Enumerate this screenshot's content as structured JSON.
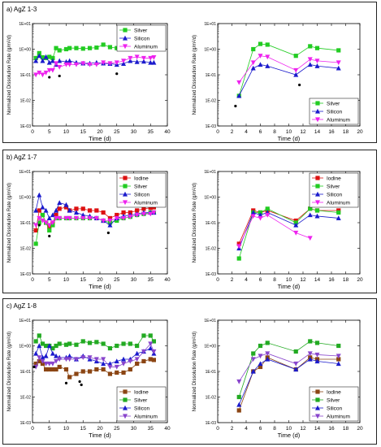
{
  "chart_data": [
    {
      "type": "scatter",
      "title": "a) AgZ 1-3",
      "xlabel": "Time (d)",
      "ylabel": "Normalized Dissolution Rate (g/m²/d)",
      "xlim": [
        0,
        40
      ],
      "xticks": [
        "0",
        "5",
        "10",
        "15",
        "20",
        "25",
        "30",
        "35",
        "40"
      ],
      "ylim_log10": [
        -3,
        1
      ],
      "yticks": [
        "1E-03",
        "1E-02",
        "1E-01",
        "1E+00",
        "1E+01"
      ],
      "legend": "top-right",
      "series": [
        {
          "name": "Silver",
          "color": "#22cc22",
          "marker": "square",
          "x": [
            1,
            2,
            3,
            4,
            5,
            6,
            7,
            8,
            10,
            11,
            13,
            15,
            17,
            19,
            21,
            23,
            25,
            27,
            29,
            31,
            33,
            35,
            36
          ],
          "y": [
            0.45,
            0.7,
            0.48,
            0.45,
            0.5,
            0.45,
            1.1,
            0.9,
            1.0,
            1.1,
            1.1,
            1.05,
            1.1,
            1.15,
            1.5,
            1.2,
            1.1,
            1.15,
            1.8,
            1.8,
            1.7,
            1.6,
            1.9
          ]
        },
        {
          "name": "Silicon",
          "color": "#1a1acc",
          "marker": "triangle",
          "x": [
            1,
            2,
            3,
            4,
            5,
            6,
            7,
            8,
            10,
            11,
            13,
            15,
            17,
            19,
            21,
            23,
            25,
            27,
            29,
            31,
            33,
            35,
            36
          ],
          "y": [
            0.35,
            0.55,
            0.35,
            0.5,
            0.3,
            0.35,
            0.25,
            0.35,
            0.32,
            0.35,
            0.3,
            0.28,
            0.28,
            0.3,
            0.28,
            0.27,
            0.25,
            0.27,
            0.35,
            0.32,
            0.33,
            0.3,
            0.3
          ]
        },
        {
          "name": "Aluminum",
          "color": "#ee22ee",
          "marker": "triangle-down",
          "x": [
            1,
            2,
            3,
            4,
            5,
            6,
            7,
            8,
            10,
            11,
            13,
            15,
            17,
            19,
            21,
            23,
            25,
            27,
            29,
            31,
            33,
            35,
            36
          ],
          "y": [
            0.1,
            0.12,
            0.1,
            0.12,
            0.15,
            0.15,
            0.28,
            0.2,
            0.25,
            0.25,
            0.25,
            0.28,
            0.25,
            0.25,
            0.3,
            0.28,
            0.3,
            0.35,
            0.45,
            0.5,
            0.45,
            0.45,
            0.48
          ]
        },
        {
          "name": "",
          "color": "#000000",
          "marker": "dot",
          "x": [
            5,
            8,
            25
          ],
          "y": [
            0.08,
            0.09,
            0.11
          ]
        }
      ]
    },
    {
      "type": "scatter",
      "title": "",
      "xlabel": "Time (d)",
      "ylabel": "Normalized Dissolution Rate (g/m²/d)",
      "xlim": [
        0,
        20
      ],
      "xticks": [
        "0",
        "2",
        "4",
        "6",
        "8",
        "10",
        "12",
        "14",
        "16",
        "18",
        "20"
      ],
      "ylim_log10": [
        -3,
        1
      ],
      "yticks": [
        "1E-03",
        "1E-02",
        "1E-01",
        "1E+00",
        "1E+01"
      ],
      "legend": "bottom-right",
      "series": [
        {
          "name": "Silver",
          "color": "#22cc22",
          "marker": "square",
          "x": [
            3,
            5,
            6,
            7,
            11,
            13,
            14,
            17
          ],
          "y": [
            0.015,
            1.0,
            1.6,
            1.5,
            0.55,
            1.3,
            1.1,
            0.9
          ]
        },
        {
          "name": "Silicon",
          "color": "#1a1acc",
          "marker": "triangle",
          "x": [
            3,
            5,
            6,
            7,
            11,
            13,
            14,
            17
          ],
          "y": [
            0.015,
            0.18,
            0.25,
            0.22,
            0.1,
            0.25,
            0.22,
            0.18
          ]
        },
        {
          "name": "Aluminum",
          "color": "#ee22ee",
          "marker": "triangle-down",
          "x": [
            3,
            5,
            6,
            7,
            11,
            13,
            14,
            17
          ],
          "y": [
            0.05,
            0.3,
            0.55,
            0.5,
            0.15,
            0.4,
            0.35,
            0.3
          ]
        },
        {
          "name": "",
          "color": "#000000",
          "marker": "dot",
          "x": [
            2.5,
            11.5
          ],
          "y": [
            0.006,
            0.04
          ]
        }
      ]
    },
    {
      "type": "scatter",
      "title": "b) AgZ 1-7",
      "xlabel": "Time (d)",
      "ylabel": "Normalized Dissolution Rate (g/m²/d)",
      "xlim": [
        0,
        40
      ],
      "xticks": [
        "0",
        "5",
        "10",
        "15",
        "20",
        "25",
        "30",
        "35",
        "40"
      ],
      "ylim_log10": [
        -3,
        1
      ],
      "yticks": [
        "1E-03",
        "1E-02",
        "1E-01",
        "1E+00",
        "1E+01"
      ],
      "legend": "top-right",
      "series": [
        {
          "name": "Iodine",
          "color": "#dd1111",
          "marker": "square",
          "x": [
            1,
            2,
            3,
            4,
            5,
            6,
            7,
            8,
            10,
            11,
            13,
            15,
            17,
            19,
            21,
            23,
            25,
            27,
            29,
            31,
            33,
            35,
            36
          ],
          "y": [
            0.05,
            0.3,
            0.2,
            0.1,
            0.07,
            0.1,
            0.2,
            0.35,
            0.4,
            0.3,
            0.35,
            0.35,
            0.3,
            0.3,
            0.25,
            0.15,
            0.2,
            0.25,
            0.25,
            0.3,
            0.35,
            0.38,
            0.4
          ]
        },
        {
          "name": "Silver",
          "color": "#22cc22",
          "marker": "square",
          "x": [
            1,
            2,
            3,
            4,
            5,
            6,
            7,
            8,
            10,
            11,
            13,
            15,
            17,
            19,
            21,
            23,
            25,
            27,
            29,
            31,
            33,
            35,
            36
          ],
          "y": [
            0.015,
            0.1,
            0.2,
            0.1,
            0.05,
            0.08,
            0.15,
            0.15,
            0.15,
            0.15,
            0.15,
            0.15,
            0.15,
            0.15,
            0.12,
            0.1,
            0.12,
            0.15,
            0.17,
            0.2,
            0.22,
            0.25,
            0.25
          ]
        },
        {
          "name": "Silicon",
          "color": "#1a1acc",
          "marker": "triangle",
          "x": [
            1,
            2,
            3,
            4,
            5,
            6,
            7,
            8,
            10,
            11,
            13,
            15,
            17,
            19,
            21,
            23,
            25,
            27,
            29,
            31,
            33,
            35,
            36
          ],
          "y": [
            0.3,
            1.2,
            0.4,
            0.3,
            0.15,
            0.2,
            0.3,
            0.6,
            0.5,
            0.3,
            0.25,
            0.2,
            0.18,
            0.15,
            0.12,
            0.08,
            0.15,
            0.18,
            0.2,
            0.22,
            0.25,
            0.25,
            0.25
          ]
        },
        {
          "name": "Aluminum",
          "color": "#ee22ee",
          "marker": "triangle-down",
          "x": [
            1,
            2,
            3,
            4,
            5,
            6,
            7,
            8,
            10,
            11,
            13,
            15,
            17,
            19,
            21,
            23,
            25,
            27,
            29,
            31,
            33,
            35,
            36
          ],
          "y": [
            0.08,
            0.15,
            0.12,
            0.1,
            0.08,
            0.1,
            0.15,
            0.15,
            0.15,
            0.15,
            0.15,
            0.15,
            0.15,
            0.15,
            0.12,
            0.12,
            0.15,
            0.15,
            0.17,
            0.2,
            0.22,
            0.22,
            0.25
          ]
        },
        {
          "name": "",
          "color": "#000000",
          "marker": "dot",
          "x": [
            2,
            5,
            22.5
          ],
          "y": [
            0.08,
            0.03,
            0.04
          ]
        }
      ]
    },
    {
      "type": "scatter",
      "title": "",
      "xlabel": "Time (d)",
      "ylabel": "Normalized Dissolution Rate (g/m²/d)",
      "xlim": [
        0,
        20
      ],
      "xticks": [
        "0",
        "2",
        "4",
        "6",
        "8",
        "10",
        "12",
        "14",
        "16",
        "18",
        "20"
      ],
      "ylim_log10": [
        -3,
        1
      ],
      "yticks": [
        "1E-03",
        "1E-02",
        "1E-01",
        "1E+00",
        "1E+01"
      ],
      "legend": "top-right",
      "series": [
        {
          "name": "Iodine",
          "color": "#dd1111",
          "marker": "square",
          "x": [
            3,
            5,
            6,
            7,
            11,
            13,
            14,
            17
          ],
          "y": [
            0.015,
            0.3,
            0.25,
            0.3,
            0.12,
            0.35,
            0.3,
            0.3
          ]
        },
        {
          "name": "Silver",
          "color": "#22cc22",
          "marker": "square",
          "x": [
            3,
            5,
            6,
            7,
            11,
            13,
            14,
            17
          ],
          "y": [
            0.004,
            0.25,
            0.25,
            0.35,
            0.1,
            0.35,
            0.3,
            0.25
          ]
        },
        {
          "name": "Silicon",
          "color": "#1a1acc",
          "marker": "triangle",
          "x": [
            3,
            5,
            6,
            7,
            11,
            13,
            14,
            17
          ],
          "y": [
            0.01,
            0.25,
            0.2,
            0.25,
            0.08,
            0.2,
            0.18,
            0.15
          ]
        },
        {
          "name": "Aluminum",
          "color": "#ee22ee",
          "marker": "triangle-down",
          "x": [
            3,
            5,
            6,
            7,
            11,
            13
          ],
          "y": [
            0.012,
            0.18,
            0.15,
            0.2,
            0.04,
            0.025
          ]
        }
      ]
    },
    {
      "type": "scatter",
      "title": "c) AgZ 1-8",
      "xlabel": "Time (d)",
      "ylabel": "Normalized Dissolution Rate (g/m²/d)",
      "xlim": [
        0,
        40
      ],
      "xticks": [
        "0",
        "5",
        "10",
        "15",
        "20",
        "25",
        "30",
        "35",
        "40"
      ],
      "ylim_log10": [
        -3,
        1
      ],
      "yticks": [
        "1E-03",
        "1E-02",
        "1E-01",
        "1E+00",
        "1E+01"
      ],
      "legend": "bottom-right",
      "series": [
        {
          "name": "Iodine",
          "color": "#8b4513",
          "marker": "square",
          "x": [
            1,
            2,
            3,
            4,
            5,
            6,
            7,
            8,
            10,
            11,
            13,
            15,
            17,
            19,
            21,
            23,
            25,
            27,
            29,
            31,
            33,
            35,
            36
          ],
          "y": [
            0.2,
            0.25,
            0.2,
            0.12,
            0.12,
            0.12,
            0.12,
            0.15,
            0.12,
            0.06,
            0.08,
            0.1,
            0.1,
            0.12,
            0.12,
            0.08,
            0.09,
            0.09,
            0.12,
            0.2,
            0.25,
            0.3,
            0.28
          ]
        },
        {
          "name": "Silver",
          "color": "#22aa22",
          "marker": "square",
          "x": [
            1,
            2,
            3,
            4,
            5,
            6,
            7,
            8,
            10,
            11,
            13,
            15,
            17,
            19,
            21,
            23,
            25,
            27,
            29,
            31,
            33,
            35,
            36
          ],
          "y": [
            1.5,
            2.5,
            1.2,
            1.0,
            1.0,
            0.8,
            1.0,
            1.2,
            1.1,
            1.2,
            1.1,
            1.5,
            1.3,
            1.4,
            1.2,
            0.8,
            1.0,
            1.2,
            1.2,
            1.0,
            2.5,
            2.5,
            1.5
          ]
        },
        {
          "name": "Silicon",
          "color": "#1a1acc",
          "marker": "triangle",
          "x": [
            1,
            2,
            3,
            4,
            5,
            6,
            7,
            8,
            10,
            11,
            13,
            15,
            17,
            19,
            21,
            23,
            25,
            27,
            29,
            31,
            33,
            35,
            36
          ],
          "y": [
            0.5,
            1.0,
            0.35,
            0.4,
            1.0,
            0.5,
            0.4,
            0.35,
            0.35,
            0.4,
            0.3,
            0.4,
            0.3,
            0.25,
            0.2,
            0.2,
            0.25,
            0.3,
            0.3,
            0.5,
            0.6,
            0.8,
            0.5
          ]
        },
        {
          "name": "Aluminum",
          "color": "#8844cc",
          "marker": "triangle-down",
          "x": [
            1,
            2,
            3,
            4,
            5,
            6,
            7,
            8,
            10,
            11,
            13,
            15,
            17,
            19,
            21,
            23,
            25,
            27,
            29,
            31,
            33,
            35,
            36
          ],
          "y": [
            0.15,
            0.35,
            0.25,
            0.2,
            0.2,
            0.2,
            0.25,
            0.3,
            0.3,
            0.3,
            0.3,
            0.35,
            0.35,
            0.3,
            0.3,
            0.15,
            0.15,
            0.2,
            0.25,
            0.3,
            0.6,
            1.2,
            0.6
          ]
        },
        {
          "name": "",
          "color": "#000000",
          "marker": "dot",
          "x": [
            0.5,
            10,
            14,
            14.5
          ],
          "y": [
            0.15,
            0.035,
            0.04,
            0.03
          ]
        }
      ]
    },
    {
      "type": "scatter",
      "title": "",
      "xlabel": "Time (d)",
      "ylabel": "Normalized Dissolution Rate (g/m²/d)",
      "xlim": [
        0,
        20
      ],
      "xticks": [
        "0",
        "2",
        "4",
        "6",
        "8",
        "10",
        "12",
        "14",
        "16",
        "18",
        "20"
      ],
      "ylim_log10": [
        -3,
        1
      ],
      "yticks": [
        "1E-03",
        "1E-02",
        "1E-01",
        "1E+00",
        "1E+01"
      ],
      "legend": "bottom-right",
      "series": [
        {
          "name": "Iodine",
          "color": "#8b4513",
          "marker": "square",
          "x": [
            3,
            5,
            6,
            7,
            11,
            13,
            14,
            17
          ],
          "y": [
            0.003,
            0.1,
            0.15,
            0.35,
            0.12,
            0.35,
            0.3,
            0.3
          ]
        },
        {
          "name": "Silver",
          "color": "#22aa22",
          "marker": "square",
          "x": [
            3,
            5,
            6,
            7,
            11,
            13,
            14,
            17
          ],
          "y": [
            0.01,
            0.5,
            1.0,
            1.3,
            0.6,
            1.5,
            1.3,
            1.0
          ]
        },
        {
          "name": "Silicon",
          "color": "#1a1acc",
          "marker": "triangle",
          "x": [
            3,
            5,
            6,
            7,
            11,
            13,
            14,
            17
          ],
          "y": [
            0.005,
            0.1,
            0.2,
            0.3,
            0.12,
            0.3,
            0.25,
            0.2
          ]
        },
        {
          "name": "Aluminum",
          "color": "#8844cc",
          "marker": "triangle-down",
          "x": [
            3,
            5,
            6,
            7,
            11,
            13,
            14,
            17
          ],
          "y": [
            0.04,
            0.3,
            0.4,
            0.5,
            0.2,
            0.5,
            0.45,
            0.4
          ]
        }
      ]
    }
  ]
}
